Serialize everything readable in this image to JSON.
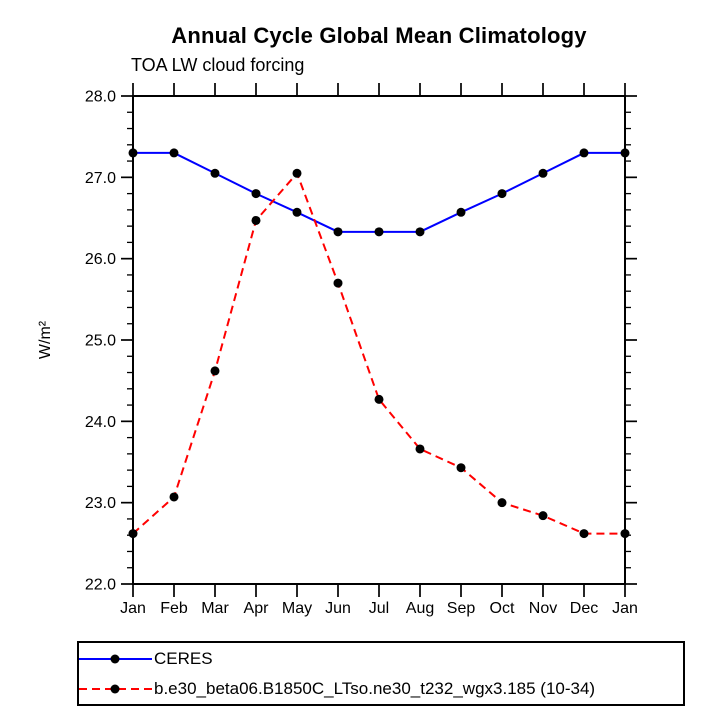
{
  "chart_data": {
    "type": "line",
    "title": "Annual Cycle Global Mean Climatology",
    "subtitle": "TOA LW cloud forcing",
    "ylabel": "W/m²",
    "categories": [
      "Jan",
      "Feb",
      "Mar",
      "Apr",
      "May",
      "Jun",
      "Jul",
      "Aug",
      "Sep",
      "Oct",
      "Nov",
      "Dec",
      "Jan"
    ],
    "series": [
      {
        "name": "CERES",
        "color": "#0000ff",
        "line_style": "solid",
        "marker": "filled-circle",
        "marker_color": "#000000",
        "values": [
          27.3,
          27.3,
          27.05,
          26.8,
          26.57,
          26.33,
          26.33,
          26.33,
          26.57,
          26.8,
          27.05,
          27.3,
          27.3
        ]
      },
      {
        "name": "b.e30_beta06.B1850C_LTso.ne30_t232_wgx3.185 (10-34)",
        "color": "#ff0000",
        "line_style": "dashed",
        "marker": "filled-circle",
        "marker_color": "#000000",
        "values": [
          22.62,
          23.07,
          24.62,
          26.47,
          27.05,
          25.7,
          24.27,
          23.66,
          23.43,
          23.0,
          22.84,
          22.62,
          22.62
        ]
      }
    ],
    "ylim": [
      22.0,
      28.0
    ],
    "y_major_ticks": [
      "22.0",
      "23.0",
      "24.0",
      "25.0",
      "26.0",
      "27.0",
      "28.0"
    ],
    "y_minor_step": 0.2,
    "grid": false,
    "legend_position": "bottom-left-box",
    "axis_color": "#000000",
    "background_color": "#ffffff"
  }
}
